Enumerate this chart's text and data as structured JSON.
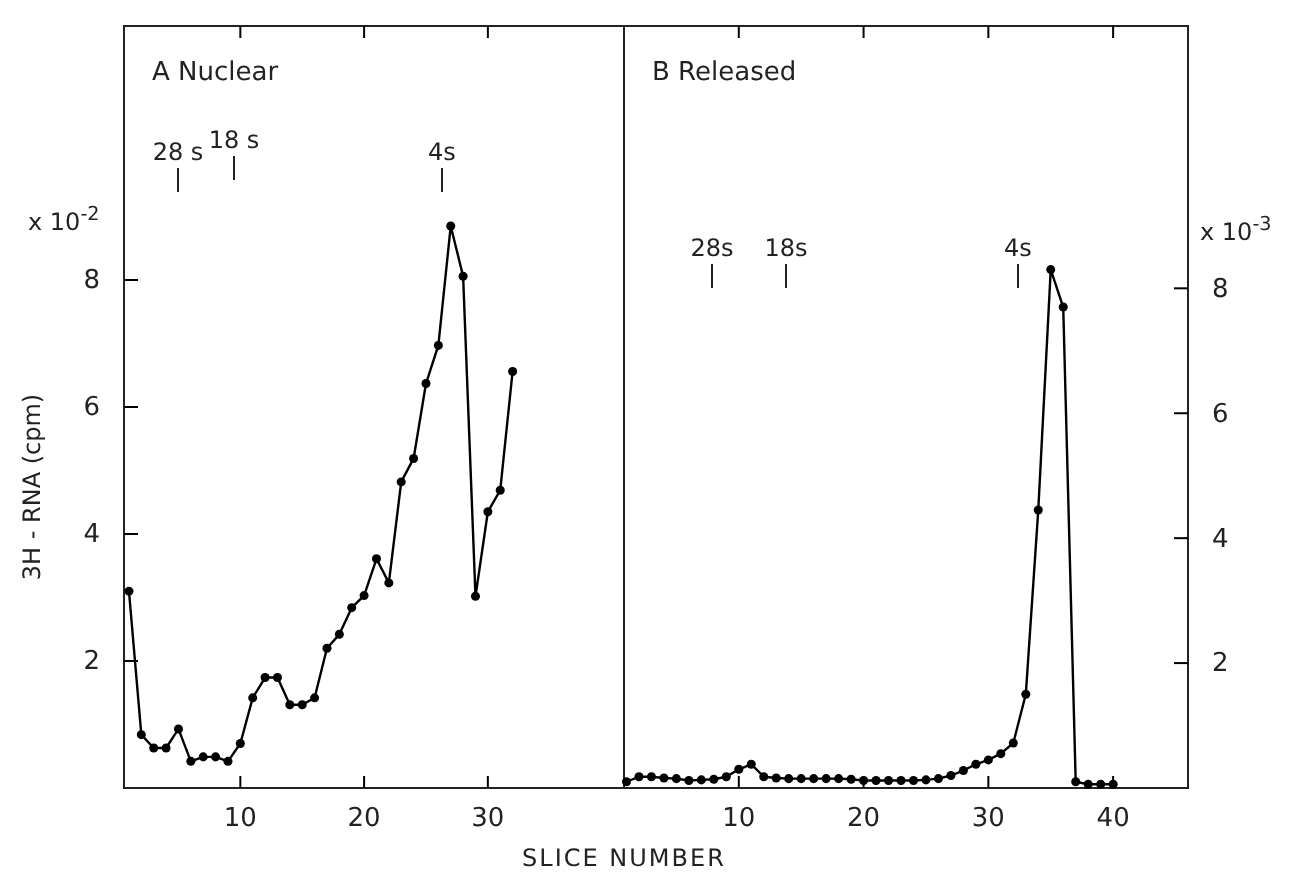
{
  "chart_data": [
    {
      "type": "line",
      "title": "A Nuclear",
      "ylabel": "3H - RNA (cpm)",
      "xlabel": "SLICE NUMBER",
      "marker": "circle",
      "line_style": "solid",
      "grid": false,
      "x": [
        1,
        2,
        3,
        4,
        5,
        6,
        7,
        8,
        9,
        10,
        11,
        12,
        13,
        14,
        15,
        16,
        17,
        18,
        19,
        20,
        21,
        22,
        23,
        24,
        25,
        26,
        27,
        28,
        29,
        30,
        31,
        32
      ],
      "series": [
        {
          "color": "#000000",
          "values": [
            3.1,
            0.84,
            0.63,
            0.63,
            0.93,
            0.42,
            0.49,
            0.49,
            0.42,
            0.7,
            1.42,
            1.74,
            1.74,
            1.31,
            1.31,
            1.42,
            2.2,
            2.42,
            2.84,
            3.03,
            3.61,
            3.23,
            4.82,
            5.19,
            6.37,
            6.97,
            8.85,
            8.06,
            3.02,
            4.35,
            4.69,
            6.56
          ]
        }
      ],
      "xlim": [
        0.6,
        41
      ],
      "xticks": [
        10,
        20,
        30
      ],
      "ylim": [
        0,
        12
      ],
      "yticks": [
        2,
        4,
        6,
        8
      ],
      "annotations": [
        "x 10$^{-2}$",
        "28 s",
        "18 s",
        "4s"
      ]
    },
    {
      "type": "line",
      "title": "B Released",
      "marker": "circle",
      "line_style": "solid",
      "grid": false,
      "x": [
        1,
        2,
        3,
        4,
        5,
        6,
        7,
        8,
        9,
        10,
        11,
        12,
        13,
        14,
        15,
        16,
        17,
        18,
        19,
        20,
        21,
        22,
        23,
        24,
        25,
        26,
        27,
        28,
        29,
        30,
        31,
        32,
        33,
        34,
        35,
        36,
        37,
        38,
        39,
        40
      ],
      "series": [
        {
          "color": "#000000",
          "axis": "y2",
          "values": [
            0.1,
            0.18,
            0.18,
            0.16,
            0.15,
            0.12,
            0.13,
            0.14,
            0.18,
            0.3,
            0.38,
            0.18,
            0.16,
            0.15,
            0.15,
            0.15,
            0.15,
            0.15,
            0.14,
            0.12,
            0.12,
            0.12,
            0.12,
            0.12,
            0.13,
            0.15,
            0.2,
            0.28,
            0.38,
            0.45,
            0.55,
            0.72,
            1.5,
            4.45,
            8.3,
            7.7,
            0.1,
            0.06,
            0.06,
            0.06
          ]
        }
      ],
      "xlim": [
        0.8,
        46
      ],
      "xticks": [
        10,
        20,
        30,
        40
      ],
      "y2lim": [
        0,
        12.2
      ],
      "y2ticks": [
        2,
        4,
        6,
        8
      ],
      "annotations": [
        "x 10$^{-3}$",
        "28s",
        "18s",
        "4s"
      ]
    }
  ]
}
